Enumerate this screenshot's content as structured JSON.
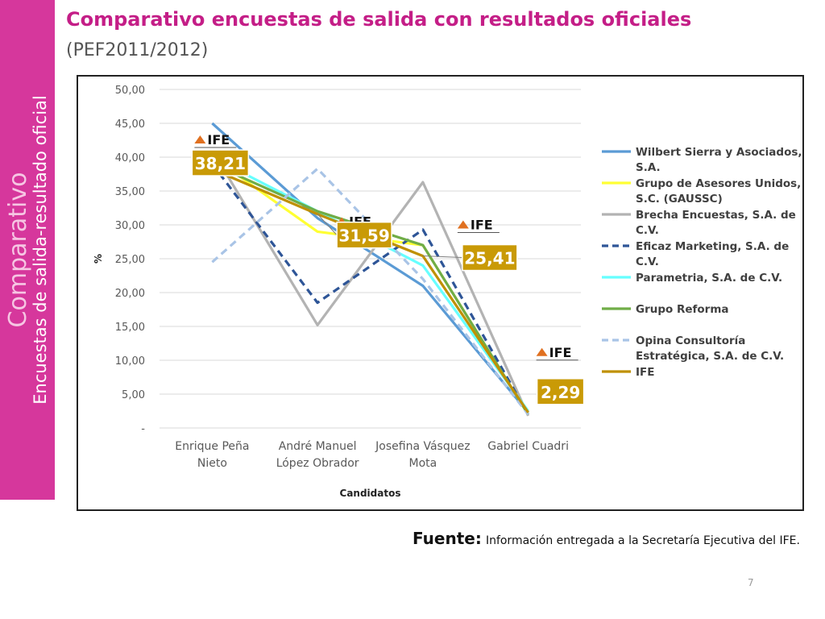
{
  "slide": {
    "title": "Comparativo encuestas de salida con resultados oficiales",
    "subtitle": "(PEF2011/2012)",
    "sidebar_title": "Comparativo",
    "sidebar_subtitle": "Encuestas de salida-resultado oficial",
    "source_label": "Fuente:",
    "source_text": "Información entregada a la Secretaría Ejecutiva del IFE.",
    "page_number": "7"
  },
  "chart_data": {
    "type": "line",
    "title": "",
    "xlabel": "Candidatos",
    "ylabel": "%",
    "ylim": [
      0,
      50
    ],
    "ytick_labels": [
      "-",
      "5,00",
      "10,00",
      "15,00",
      "20,00",
      "25,00",
      "30,00",
      "35,00",
      "40,00",
      "45,00",
      "50,00"
    ],
    "grid": true,
    "legend_position": "right",
    "categories": [
      [
        "Enrique Peña",
        "Nieto"
      ],
      [
        "André Manuel",
        "López Obrador"
      ],
      [
        "Josefina Vásquez",
        "Mota"
      ],
      [
        "Gabriel Cuadri"
      ]
    ],
    "series": [
      {
        "name_lines": [
          "Wilbert Sierra y Asociados,",
          "S.A."
        ],
        "color": "#5b9bd5",
        "dashed": false,
        "values": [
          45.0,
          31.0,
          21.0,
          2.3
        ]
      },
      {
        "name_lines": [
          " Grupo de Asesores Unidos,",
          "S.C. (GAUSSC)"
        ],
        "color": "#ffff33",
        "dashed": false,
        "values": [
          40.0,
          29.0,
          27.0,
          2.0
        ]
      },
      {
        "name_lines": [
          "Brecha Encuestas, S.A. de",
          "C.V."
        ],
        "color": "#b3b3b3",
        "dashed": false,
        "values": [
          41.0,
          15.2,
          36.3,
          1.8
        ]
      },
      {
        "name_lines": [
          "Eficaz Marketing, S.A. de",
          "C.V."
        ],
        "color": "#2e5597",
        "dashed": true,
        "values": [
          39.0,
          18.5,
          29.3,
          2.0
        ]
      },
      {
        "name_lines": [
          "Parametria, S.A. de C.V."
        ],
        "color": "#66ffff",
        "dashed": false,
        "values": [
          40.0,
          32.0,
          24.0,
          2.5
        ]
      },
      {
        "name_lines": [
          "Grupo Reforma"
        ],
        "color": "#70ad47",
        "dashed": false,
        "values": [
          39.0,
          32.0,
          27.0,
          2.0
        ]
      },
      {
        "name_lines": [
          "Opina Consultoría",
          "Estratégica, S.A. de C.V."
        ],
        "color": "#a9c4e6",
        "dashed": true,
        "values": [
          24.5,
          38.3,
          22.0,
          2.0
        ]
      },
      {
        "name_lines": [
          "IFE"
        ],
        "color": "#bf9000",
        "dashed": false,
        "values": [
          38.21,
          31.59,
          25.41,
          2.29
        ]
      }
    ],
    "annotations": [
      {
        "category_index": 0,
        "logo": "IFE",
        "label": "38,21",
        "value": 38.21
      },
      {
        "category_index": 1,
        "logo": "IFE",
        "label": "31,59",
        "value": 31.59
      },
      {
        "category_index": 2,
        "logo": "IFE",
        "label": "25,41",
        "value": 25.41
      },
      {
        "category_index": 3,
        "logo": "IFE",
        "label": "2,29",
        "value": 2.29
      }
    ],
    "label_color": "#c99a06"
  }
}
